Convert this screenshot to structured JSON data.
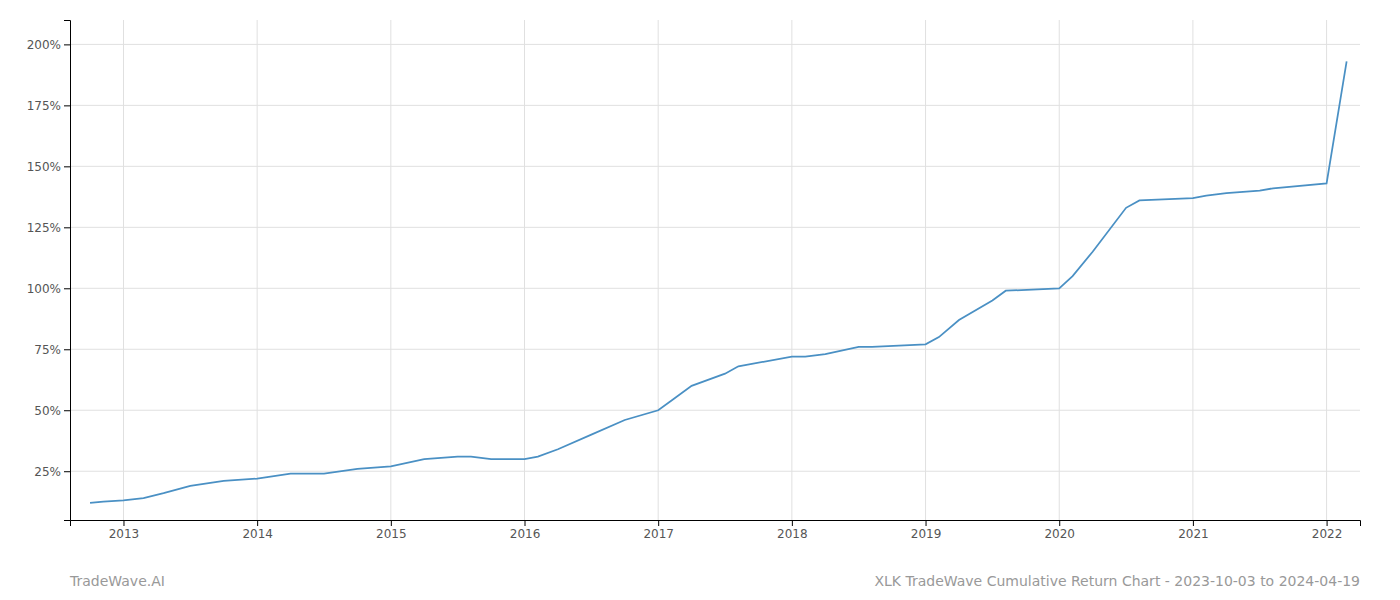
{
  "chart_data": {
    "type": "line",
    "title": "XLK TradeWave Cumulative Return Chart - 2023-10-03 to 2024-04-19",
    "annotations": [
      "TradeWave.AI"
    ],
    "x": [
      2012.75,
      2012.85,
      2013.0,
      2013.15,
      2013.3,
      2013.5,
      2013.75,
      2014.0,
      2014.25,
      2014.5,
      2014.75,
      2015.0,
      2015.25,
      2015.5,
      2015.6,
      2015.75,
      2016.0,
      2016.1,
      2016.25,
      2016.5,
      2016.75,
      2017.0,
      2017.1,
      2017.25,
      2017.5,
      2017.6,
      2018.0,
      2018.1,
      2018.25,
      2018.5,
      2018.6,
      2019.0,
      2019.1,
      2019.25,
      2019.5,
      2019.6,
      2020.0,
      2020.1,
      2020.25,
      2020.5,
      2020.6,
      2021.0,
      2021.1,
      2021.25,
      2021.5,
      2021.6,
      2022.0,
      2022.15
    ],
    "values": [
      12,
      12.5,
      13,
      14,
      16,
      19,
      21,
      22,
      24,
      24,
      26,
      27,
      30,
      31,
      31,
      30,
      30,
      31,
      34,
      40,
      46,
      50,
      54,
      60,
      65,
      68,
      72,
      72,
      73,
      76,
      76,
      77,
      80,
      87,
      95,
      99,
      100,
      105,
      115,
      133,
      136,
      137,
      138,
      139,
      140,
      141,
      143,
      193
    ],
    "color": "#4a90c4",
    "xlim": [
      2012.6,
      2022.25
    ],
    "xticks": [
      2013,
      2014,
      2015,
      2016,
      2017,
      2018,
      2019,
      2020,
      2021,
      2022
    ],
    "ylim": [
      5,
      210
    ],
    "yticks": [
      {
        "value": 25,
        "label": "25%"
      },
      {
        "value": 50,
        "label": "50%"
      },
      {
        "value": 75,
        "label": "75%"
      },
      {
        "value": 100,
        "label": "100%"
      },
      {
        "value": 125,
        "label": "125%"
      },
      {
        "value": 150,
        "label": "150%"
      },
      {
        "value": 175,
        "label": "175%"
      },
      {
        "value": 200,
        "label": "200%"
      }
    ],
    "grid": true
  }
}
